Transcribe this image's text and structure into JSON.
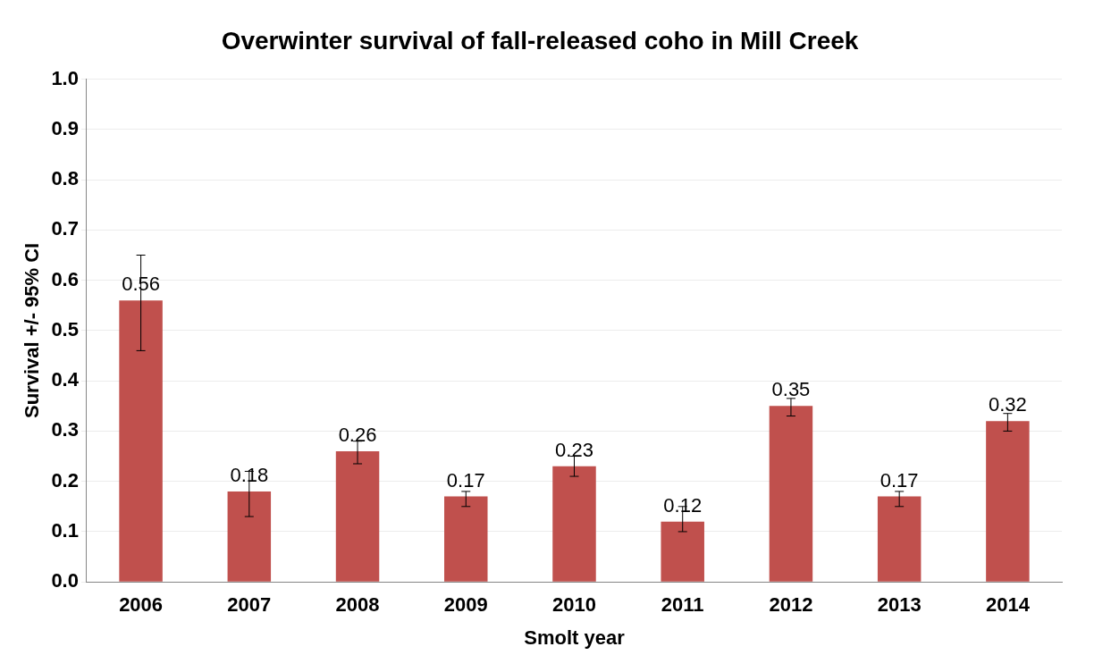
{
  "chart_data": {
    "type": "bar",
    "title": "Overwinter survival of fall-released coho in Mill Creek",
    "xlabel": "Smolt year",
    "ylabel": "Survival +/- 95% CI",
    "categories": [
      "2006",
      "2007",
      "2008",
      "2009",
      "2010",
      "2011",
      "2012",
      "2013",
      "2014"
    ],
    "values": [
      0.56,
      0.18,
      0.26,
      0.17,
      0.23,
      0.12,
      0.35,
      0.17,
      0.32
    ],
    "errors": [
      [
        0.46,
        0.65
      ],
      [
        0.13,
        0.22
      ],
      [
        0.235,
        0.28
      ],
      [
        0.15,
        0.18
      ],
      [
        0.21,
        0.25
      ],
      [
        0.1,
        0.15
      ],
      [
        0.33,
        0.365
      ],
      [
        0.15,
        0.18
      ],
      [
        0.3,
        0.335
      ]
    ],
    "color": "#c0504d",
    "data_labels": true,
    "ylim": [
      0,
      1
    ],
    "yticks": [
      {
        "value": 0,
        "label": "0.0"
      },
      {
        "value": 0.1,
        "label": "0.1"
      },
      {
        "value": 0.2,
        "label": "0.2"
      },
      {
        "value": 0.3,
        "label": "0.3"
      },
      {
        "value": 0.4,
        "label": "0.4"
      },
      {
        "value": 0.5,
        "label": "0.5"
      },
      {
        "value": 0.6,
        "label": "0.6"
      },
      {
        "value": 0.7,
        "label": "0.7"
      },
      {
        "value": 0.8,
        "label": "0.8"
      },
      {
        "value": 0.9,
        "label": "0.9"
      },
      {
        "value": 1,
        "label": "1.0"
      }
    ],
    "grid": "y",
    "legend": false
  }
}
